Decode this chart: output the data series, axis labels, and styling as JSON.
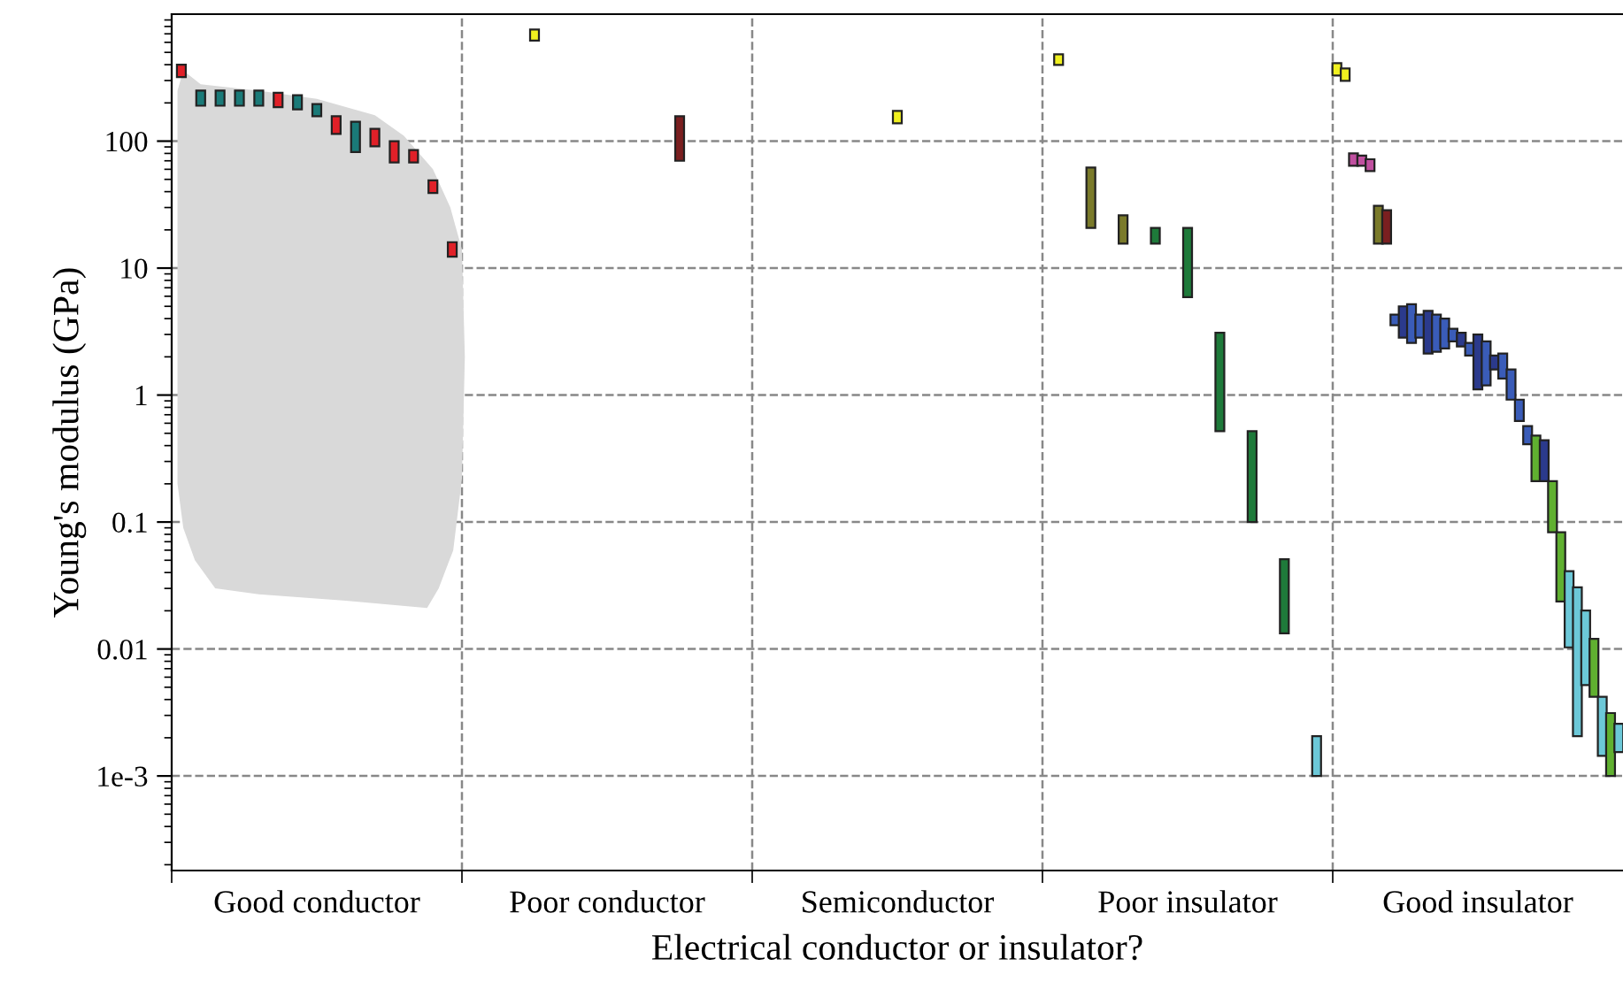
{
  "chart_data": {
    "type": "bar",
    "xlabel": "Electrical conductor or insulator?",
    "ylabel": "Young's modulus (GPa)",
    "categories": [
      "Good conductor",
      "Poor conductor",
      "Semiconductor",
      "Poor insulator",
      "Good insulator"
    ],
    "ylim": [
      0.00018,
      1000
    ],
    "log": "y",
    "grid": "y",
    "yticks": [
      {
        "value": 0.001,
        "label": "1e-3"
      },
      0.01,
      0.1,
      1,
      10,
      100
    ],
    "series": [
      {
        "base": [
          320,
          620,
          138,
          398,
          328
        ],
        "values": [
          80,
          136,
          35,
          85,
          83
        ],
        "colors": [
          "#e02028",
          "#f0f020",
          "#f0f020",
          "#f0f020",
          "#f0f020"
        ]
      },
      {
        "base": [
          190,
          70,
          null,
          20.7,
          298
        ],
        "values": [
          60,
          87,
          null,
          41.3,
          75
        ],
        "colors": [
          "#1a7a78",
          "#7a1f20",
          null,
          "#7a7a2a",
          "#f0f020"
        ]
      },
      {
        "base": [
          190,
          null,
          null,
          15.6,
          64
        ],
        "values": [
          60,
          null,
          null,
          10.4,
          16
        ],
        "colors": [
          "#1a7a78",
          null,
          null,
          "#7a7a2a",
          "#c050a0"
        ]
      },
      {
        "base": [
          190,
          null,
          null,
          15.6,
          64
        ],
        "values": [
          60,
          null,
          null,
          5.1,
          13
        ],
        "colors": [
          "#1a7a78",
          null,
          null,
          "#1e7a3a",
          "#c050a0"
        ]
      },
      {
        "base": [
          190,
          null,
          null,
          5.9,
          58
        ],
        "values": [
          60,
          null,
          null,
          14.8,
          14
        ],
        "colors": [
          "#1a7a78",
          null,
          null,
          "#1e7a3a",
          "#c050a0"
        ]
      },
      {
        "base": [
          185,
          null,
          null,
          0.52,
          15.6
        ],
        "values": [
          55,
          null,
          null,
          2.58,
          15.4
        ],
        "colors": [
          "#e02028",
          null,
          null,
          "#1e7a3a",
          "#7a7a2a"
        ]
      },
      {
        "base": [
          178,
          null,
          null,
          0.1,
          15.6
        ],
        "values": [
          52,
          null,
          null,
          0.42,
          13.0
        ],
        "colors": [
          "#1a7a78",
          null,
          null,
          "#1e7a3a",
          "#7a1f20"
        ]
      },
      {
        "base": [
          157,
          null,
          null,
          0.0133,
          3.55
        ],
        "values": [
          39,
          null,
          null,
          0.0377,
          0.75
        ],
        "colors": [
          "#1a7a78",
          null,
          null,
          "#1e7a3a",
          "#3a5cb8"
        ]
      },
      {
        "base": [
          114,
          null,
          null,
          0.001,
          2.83
        ],
        "values": [
          43,
          null,
          null,
          0.00106,
          2.17
        ],
        "colors": [
          "#e02028",
          null,
          null,
          "#6cc8d8",
          "#2b3a8c"
        ]
      },
      {
        "base": [
          82,
          null,
          null,
          null,
          2.57
        ],
        "values": [
          60,
          null,
          null,
          null,
          2.63
        ],
        "colors": [
          "#1a7a78",
          null,
          null,
          null,
          "#3a5cb8"
        ]
      },
      {
        "base": [
          91,
          null,
          null,
          null,
          2.83
        ],
        "values": [
          34,
          null,
          null,
          null,
          1.47
        ],
        "colors": [
          "#e02028",
          null,
          null,
          null,
          "#3a5cb8"
        ]
      },
      {
        "base": [
          68,
          null,
          null,
          null,
          2.12
        ],
        "values": [
          32,
          null,
          null,
          null,
          2.48
        ],
        "colors": [
          "#e02028",
          null,
          null,
          null,
          "#2b3a8c"
        ]
      },
      {
        "base": [
          68,
          null,
          null,
          null,
          2.19
        ],
        "values": [
          17,
          null,
          null,
          null,
          2.11
        ],
        "colors": [
          "#e02028",
          null,
          null,
          null,
          "#3a5cb8"
        ]
      },
      {
        "base": [
          39,
          null,
          null,
          null,
          2.33
        ],
        "values": [
          10,
          null,
          null,
          null,
          1.67
        ],
        "colors": [
          "#e02028",
          null,
          null,
          null,
          "#3a5cb8"
        ]
      },
      {
        "base": [
          12.3,
          null,
          null,
          null,
          2.65
        ],
        "values": [
          3.7,
          null,
          null,
          null,
          0.68
        ],
        "colors": [
          "#e02028",
          null,
          null,
          null,
          "#3a5cb8"
        ]
      },
      {
        "base": [
          null,
          null,
          null,
          null,
          2.41
        ],
        "values": [
          null,
          null,
          null,
          null,
          0.69
        ],
        "colors": [
          null,
          null,
          null,
          null,
          "#2b3a8c"
        ]
      },
      {
        "base": [
          null,
          null,
          null,
          null,
          2.05
        ],
        "values": [
          null,
          null,
          null,
          null,
          0.52
        ],
        "colors": [
          null,
          null,
          null,
          null,
          "#3a5cb8"
        ]
      },
      {
        "base": [
          null,
          null,
          null,
          null,
          1.11
        ],
        "values": [
          null,
          null,
          null,
          null,
          1.89
        ],
        "colors": [
          null,
          null,
          null,
          null,
          "#2b3a8c"
        ]
      },
      {
        "base": [
          null,
          null,
          null,
          null,
          1.19
        ],
        "values": [
          null,
          null,
          null,
          null,
          1.46
        ],
        "colors": [
          null,
          null,
          null,
          null,
          "#3a5cb8"
        ]
      },
      {
        "base": [
          null,
          null,
          null,
          null,
          1.59
        ],
        "values": [
          null,
          null,
          null,
          null,
          0.46
        ],
        "colors": [
          null,
          null,
          null,
          null,
          "#2b3a8c"
        ]
      },
      {
        "base": [
          null,
          null,
          null,
          null,
          1.35
        ],
        "values": [
          null,
          null,
          null,
          null,
          0.77
        ],
        "colors": [
          null,
          null,
          null,
          null,
          "#3a5cb8"
        ]
      },
      {
        "base": [
          null,
          null,
          null,
          null,
          0.92
        ],
        "values": [
          null,
          null,
          null,
          null,
          0.67
        ],
        "colors": [
          null,
          null,
          null,
          null,
          "#3a5cb8"
        ]
      },
      {
        "base": [
          null,
          null,
          null,
          null,
          0.625
        ],
        "values": [
          null,
          null,
          null,
          null,
          0.295
        ],
        "colors": [
          null,
          null,
          null,
          null,
          "#3a5cb8"
        ]
      },
      {
        "base": [
          null,
          null,
          null,
          null,
          0.41
        ],
        "values": [
          null,
          null,
          null,
          null,
          0.16
        ],
        "colors": [
          null,
          null,
          null,
          null,
          "#3a5cb8"
        ]
      },
      {
        "base": [
          null,
          null,
          null,
          null,
          0.21
        ],
        "values": [
          null,
          null,
          null,
          null,
          0.27
        ],
        "colors": [
          null,
          null,
          null,
          null,
          "#60b030"
        ]
      },
      {
        "base": [
          null,
          null,
          null,
          null,
          0.21
        ],
        "values": [
          null,
          null,
          null,
          null,
          0.23
        ],
        "colors": [
          null,
          null,
          null,
          null,
          "#2b3a8c"
        ]
      },
      {
        "base": [
          null,
          null,
          null,
          null,
          0.083
        ],
        "values": [
          null,
          null,
          null,
          null,
          0.127
        ],
        "colors": [
          null,
          null,
          null,
          null,
          "#60b030"
        ]
      },
      {
        "base": [
          null,
          null,
          null,
          null,
          0.0237
        ],
        "values": [
          null,
          null,
          null,
          null,
          0.0593
        ],
        "colors": [
          null,
          null,
          null,
          null,
          "#60b030"
        ]
      },
      {
        "base": [
          null,
          null,
          null,
          null,
          0.0103
        ],
        "values": [
          null,
          null,
          null,
          null,
          0.0307
        ],
        "colors": [
          null,
          null,
          null,
          null,
          "#6cc8d8"
        ]
      },
      {
        "base": [
          null,
          null,
          null,
          null,
          0.00206
        ],
        "values": [
          null,
          null,
          null,
          null,
          0.02854
        ],
        "colors": [
          null,
          null,
          null,
          null,
          "#6cc8d8"
        ]
      },
      {
        "base": [
          null,
          null,
          null,
          null,
          0.0052
        ],
        "values": [
          null,
          null,
          null,
          null,
          0.0149
        ],
        "colors": [
          null,
          null,
          null,
          null,
          "#6cc8d8"
        ]
      },
      {
        "base": [
          null,
          null,
          null,
          null,
          0.0042
        ],
        "values": [
          null,
          null,
          null,
          null,
          0.0078
        ],
        "colors": [
          null,
          null,
          null,
          null,
          "#60b030"
        ]
      },
      {
        "base": [
          null,
          null,
          null,
          null,
          0.00144
        ],
        "values": [
          null,
          null,
          null,
          null,
          0.00276
        ],
        "colors": [
          null,
          null,
          null,
          null,
          "#6cc8d8"
        ]
      },
      {
        "base": [
          null,
          null,
          null,
          null,
          0.001
        ],
        "values": [
          null,
          null,
          null,
          null,
          0.00213
        ],
        "colors": [
          null,
          null,
          null,
          null,
          "#60b030"
        ]
      },
      {
        "base": [
          null,
          null,
          null,
          null,
          0.00154
        ],
        "values": [
          null,
          null,
          null,
          null,
          0.00104
        ],
        "colors": [
          null,
          null,
          null,
          null,
          "#6cc8d8"
        ]
      }
    ]
  }
}
